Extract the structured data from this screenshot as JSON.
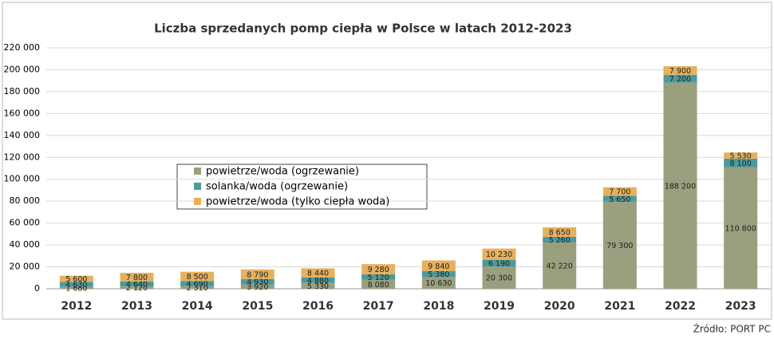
{
  "chart_data": {
    "type": "stacked_bar",
    "title": "Liczba sprzedanych pomp ciepła w Polsce w latach 2012-2023",
    "categories": [
      "2012",
      "2013",
      "2014",
      "2015",
      "2016",
      "2017",
      "2018",
      "2019",
      "2020",
      "2021",
      "2022",
      "2023"
    ],
    "series": [
      {
        "name": "powietrze/woda (ogrzewanie)",
        "color": "#9a9f7e",
        "values": [
          1680,
          2120,
          2310,
          3920,
          5330,
          8080,
          10630,
          20300,
          42220,
          79300,
          188200,
          110800
        ],
        "value_labels": [
          "1 680",
          "2 120",
          "2 310",
          "3 920",
          "5 330",
          "8 080",
          "10 630",
          "20 300",
          "42 220",
          "79 300",
          "188 200",
          "110 800"
        ]
      },
      {
        "name": "solanka/woda (ogrzewanie)",
        "color": "#4e9a9a",
        "values": [
          4630,
          4640,
          4690,
          4930,
          4880,
          5120,
          5380,
          6190,
          5260,
          5650,
          7200,
          8100
        ],
        "value_labels": [
          "4 630",
          "4 640",
          "4 690",
          "4 930",
          "4 880",
          "5 120",
          "5 380",
          "6 190",
          "5 260",
          "5 650",
          "7 200",
          "8 100"
        ]
      },
      {
        "name": "powietrze/woda (tylko ciepła woda)",
        "color": "#e5b15e",
        "values": [
          5600,
          7800,
          8500,
          8790,
          8440,
          9280,
          9840,
          10230,
          8650,
          7700,
          7900,
          5530
        ],
        "value_labels": [
          "5 600",
          "7 800",
          "8 500",
          "8 790",
          "8 440",
          "9 280",
          "9 840",
          "10 230",
          "8 650",
          "7 700",
          "7 900",
          "5 530"
        ]
      }
    ],
    "ylim": [
      0,
      220000
    ],
    "yticks": [
      0,
      {
        "value": 20000,
        "label": "20 000"
      },
      {
        "value": 40000,
        "label": "40 000"
      },
      {
        "value": 60000,
        "label": "60 000"
      },
      {
        "value": 80000,
        "label": "80 000"
      },
      {
        "value": 100000,
        "label": "100 000"
      },
      {
        "value": 120000,
        "label": "120 000"
      },
      {
        "value": 140000,
        "label": "140 000"
      },
      {
        "value": 160000,
        "label": "160 000"
      },
      {
        "value": 180000,
        "label": "180 000"
      },
      {
        "value": 200000,
        "label": "200 000"
      },
      {
        "value": 220000,
        "label": "220 000"
      }
    ],
    "grid": true,
    "source": "Źródło: PORT PC"
  }
}
